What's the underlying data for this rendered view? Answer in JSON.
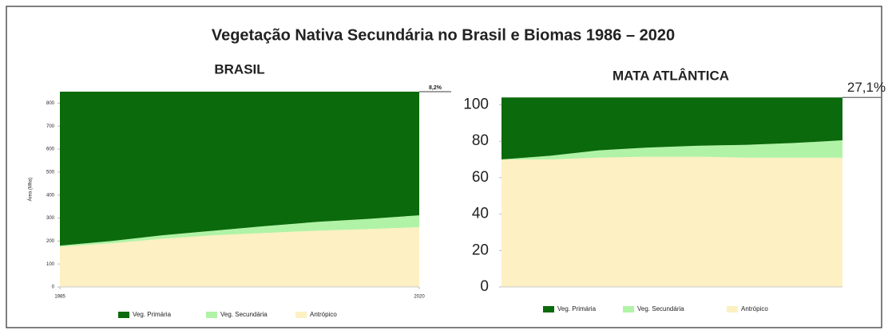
{
  "title": "Vegetação Nativa Secundária no Brasil e Biomas 1986 – 2020",
  "chart_data": [
    {
      "type": "area",
      "stacked": true,
      "title": "BRASIL",
      "y_label": "Área (Mha)",
      "annotation": "8,2%",
      "x": [
        1985,
        1990,
        1995,
        2000,
        2005,
        2010,
        2015,
        2020
      ],
      "xlim": [
        1985,
        2020
      ],
      "xticks": [
        1985,
        2020
      ],
      "ylim": [
        0,
        850
      ],
      "yticks": [
        0,
        100,
        200,
        300,
        400,
        500,
        600,
        700,
        800
      ],
      "series": [
        {
          "name": "Veg. Primária",
          "color": "#0b6a0b",
          "values": [
            670,
            650,
            625,
            605,
            585,
            567,
            554,
            538
          ]
        },
        {
          "name": "Veg. Secundária",
          "color": "#b0f3a6",
          "values": [
            5,
            10,
            15,
            20,
            30,
            38,
            44,
            52
          ]
        },
        {
          "name": "Antrópico",
          "color": "#fdf0c2",
          "values": [
            175,
            190,
            210,
            225,
            235,
            245,
            252,
            260
          ]
        }
      ]
    },
    {
      "type": "area",
      "stacked": true,
      "title": "MATA ATLÂNTICA",
      "annotation": "27,1%",
      "x": [
        1985,
        1990,
        1995,
        2000,
        2005,
        2010,
        2015,
        2020
      ],
      "xlim": [
        1985,
        2020
      ],
      "ylim": [
        0,
        105
      ],
      "yticks": [
        0,
        20,
        40,
        60,
        80,
        100
      ],
      "series": [
        {
          "name": "Veg. Primária",
          "color": "#0b6a0b",
          "values": [
            34,
            32,
            29,
            27.5,
            26.5,
            26,
            25,
            23.5
          ]
        },
        {
          "name": "Veg. Secundária",
          "color": "#b0f3a6",
          "values": [
            0,
            2,
            4,
            5,
            6,
            7,
            8,
            9.5
          ]
        },
        {
          "name": "Antrópico",
          "color": "#fdf0c2",
          "values": [
            70,
            70,
            71,
            71.5,
            71.5,
            71,
            71,
            71
          ]
        }
      ]
    }
  ]
}
